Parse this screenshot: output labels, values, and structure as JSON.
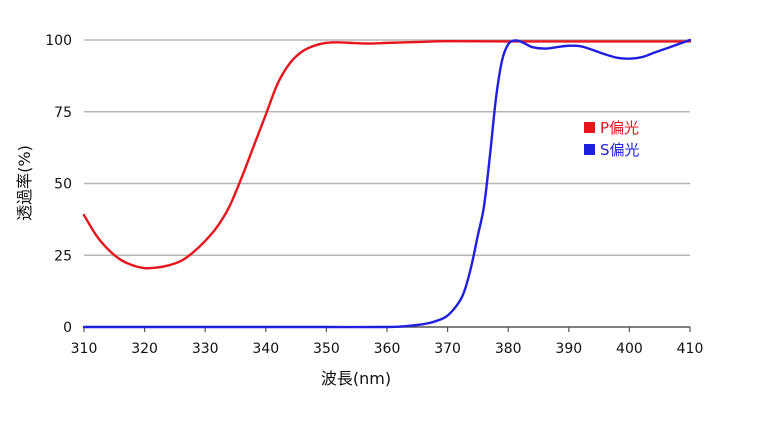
{
  "chart_data": {
    "type": "line",
    "title": "",
    "xlabel": "波長(nm)",
    "ylabel": "透過率(%)",
    "xlim": [
      310,
      410
    ],
    "ylim": [
      0,
      100
    ],
    "x_ticks": [
      "310",
      "320",
      "330",
      "340",
      "350",
      "360",
      "370",
      "380",
      "390",
      "400",
      "410"
    ],
    "y_ticks": [
      "0",
      "25",
      "50",
      "75",
      "100"
    ],
    "grid": true,
    "legend_position": "right",
    "series": [
      {
        "name": "P偏光",
        "color": "#e8141c",
        "x": [
          310,
          312,
          314,
          316,
          318,
          320,
          322,
          324,
          326,
          328,
          330,
          332,
          334,
          336,
          338,
          340,
          342,
          344,
          346,
          348,
          350,
          352,
          354,
          356,
          358,
          360,
          365,
          370,
          380,
          390,
          400,
          410
        ],
        "y": [
          39,
          32,
          27,
          23.5,
          21.5,
          20.5,
          20.7,
          21.5,
          23,
          26,
          30,
          35,
          42,
          52,
          63,
          74,
          85,
          92,
          96,
          98,
          99,
          99.2,
          99,
          98.8,
          98.8,
          99,
          99.3,
          99.6,
          99.5,
          99.5,
          99.5,
          99.5
        ]
      },
      {
        "name": "S偏光",
        "color": "#1f1fe0",
        "x": [
          310,
          320,
          330,
          340,
          350,
          360,
          363,
          366,
          368,
          370,
          372,
          373,
          374,
          375,
          376,
          377,
          378,
          379,
          380,
          381,
          382,
          383,
          384,
          386,
          388,
          390,
          392,
          394,
          396,
          398,
          400,
          402,
          404,
          406,
          408,
          410
        ],
        "y": [
          0,
          0,
          0,
          0,
          0,
          0,
          0.3,
          1,
          2,
          4,
          9,
          14,
          22,
          32,
          42,
          60,
          80,
          93,
          98.5,
          99.8,
          99.5,
          98.5,
          97.5,
          97,
          97.5,
          98,
          97.8,
          96.5,
          95,
          93.8,
          93.5,
          94,
          95.5,
          97,
          98.5,
          100
        ]
      }
    ]
  }
}
